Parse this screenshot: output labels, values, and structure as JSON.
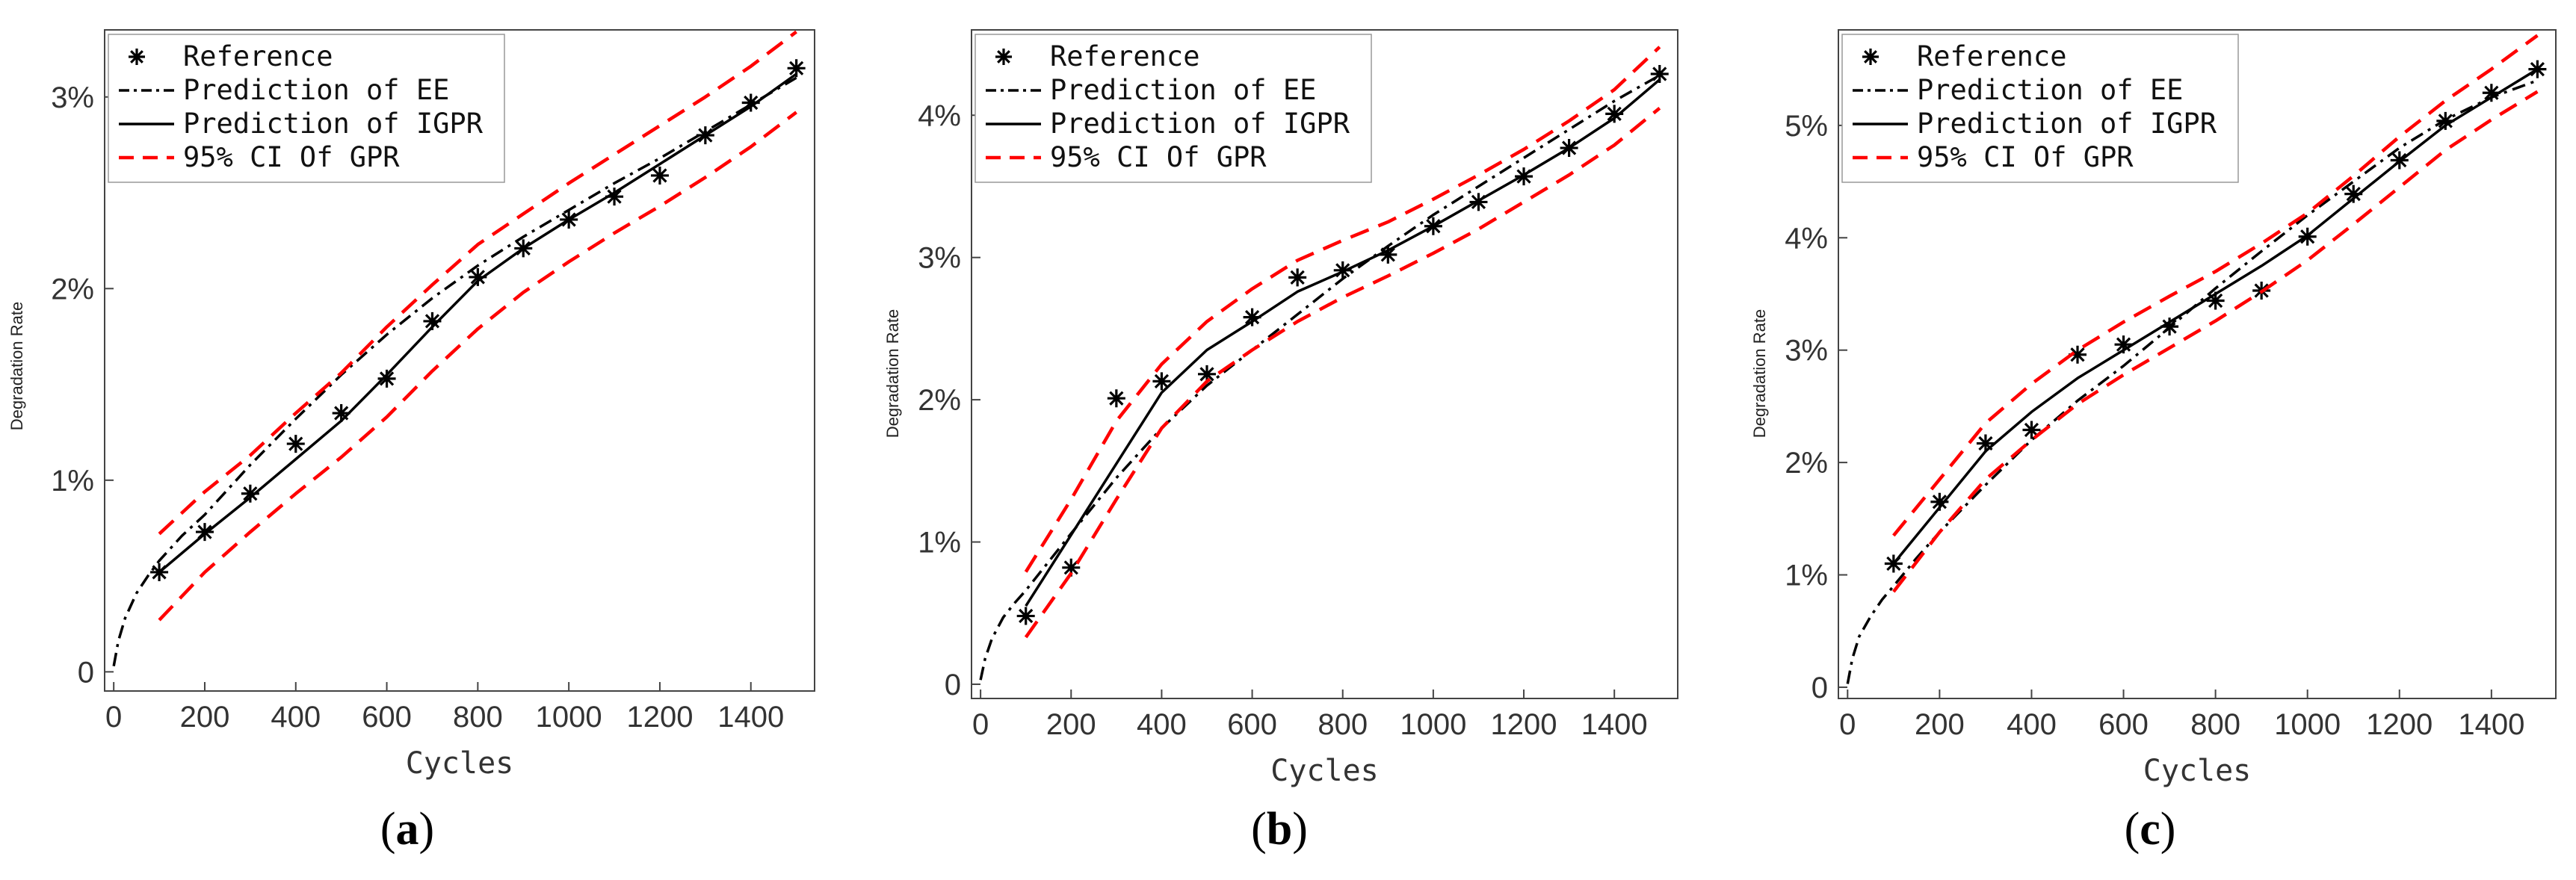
{
  "legend": {
    "reference": "Reference",
    "ee": "Prediction of EE",
    "igpr": "Prediction of IGPR",
    "ci": "95% CI Of GPR"
  },
  "colors": {
    "line": "#000000",
    "ci": "#ff0000",
    "axis": "#444444"
  },
  "chart_data": [
    {
      "type": "line",
      "panel": "a",
      "caption": "a",
      "xlabel": "Cycles",
      "ylabel": "Degradation Rate",
      "xlim": [
        -20,
        1540
      ],
      "ylim": [
        -0.1,
        3.35
      ],
      "xticks": [
        0,
        200,
        400,
        600,
        800,
        1000,
        1200,
        1400
      ],
      "yticks": [
        0,
        1,
        2,
        3
      ],
      "ytick_labels": [
        "0",
        "1%",
        "2%",
        "3%"
      ],
      "legend_position": "top-left",
      "series": [
        {
          "name": "Reference",
          "style": "markers",
          "x": [
            100,
            200,
            300,
            400,
            500,
            600,
            700,
            800,
            900,
            1000,
            1100,
            1200,
            1300,
            1400,
            1500
          ],
          "y": [
            0.52,
            0.73,
            0.93,
            1.19,
            1.35,
            1.53,
            1.83,
            2.06,
            2.21,
            2.36,
            2.48,
            2.59,
            2.8,
            2.97,
            3.15
          ]
        },
        {
          "name": "Prediction of EE",
          "style": "dashdot",
          "x": [
            0,
            10,
            25,
            50,
            75,
            100,
            150,
            200,
            300,
            400,
            500,
            600,
            700,
            800,
            900,
            1000,
            1100,
            1200,
            1300,
            1400,
            1500
          ],
          "y": [
            0.03,
            0.16,
            0.28,
            0.41,
            0.5,
            0.58,
            0.71,
            0.82,
            1.08,
            1.32,
            1.55,
            1.76,
            1.95,
            2.12,
            2.27,
            2.41,
            2.55,
            2.68,
            2.82,
            2.96,
            3.1
          ]
        },
        {
          "name": "Prediction of IGPR",
          "style": "solid",
          "x": [
            100,
            200,
            300,
            400,
            500,
            600,
            700,
            800,
            900,
            1000,
            1100,
            1200,
            1300,
            1400,
            1500
          ],
          "y": [
            0.52,
            0.72,
            0.91,
            1.11,
            1.31,
            1.55,
            1.8,
            2.04,
            2.21,
            2.36,
            2.5,
            2.65,
            2.8,
            2.95,
            3.12
          ]
        },
        {
          "name": "95% CI Of GPR upper",
          "style": "ci",
          "x": [
            100,
            200,
            300,
            400,
            500,
            600,
            700,
            800,
            900,
            1000,
            1100,
            1200,
            1300,
            1400,
            1500
          ],
          "y": [
            0.72,
            0.94,
            1.13,
            1.35,
            1.56,
            1.8,
            2.02,
            2.23,
            2.39,
            2.55,
            2.7,
            2.85,
            3.0,
            3.16,
            3.34
          ]
        },
        {
          "name": "95% CI Of GPR lower",
          "style": "ci",
          "x": [
            100,
            200,
            300,
            400,
            500,
            600,
            700,
            800,
            900,
            1000,
            1100,
            1200,
            1300,
            1400,
            1500
          ],
          "y": [
            0.27,
            0.52,
            0.73,
            0.93,
            1.12,
            1.33,
            1.57,
            1.79,
            1.98,
            2.14,
            2.29,
            2.43,
            2.58,
            2.74,
            2.92
          ]
        }
      ]
    },
    {
      "type": "line",
      "panel": "b",
      "caption": "b",
      "xlabel": "Cycles",
      "ylabel": "Degradation Rate",
      "xlim": [
        -20,
        1540
      ],
      "ylim": [
        -0.1,
        4.6
      ],
      "xticks": [
        0,
        200,
        400,
        600,
        800,
        1000,
        1200,
        1400
      ],
      "yticks": [
        0,
        1,
        2,
        3,
        4
      ],
      "ytick_labels": [
        "0",
        "1%",
        "2%",
        "3%",
        "4%"
      ],
      "legend_position": "top-left",
      "series": [
        {
          "name": "Reference",
          "style": "markers",
          "x": [
            100,
            200,
            300,
            400,
            500,
            600,
            700,
            800,
            900,
            1000,
            1100,
            1200,
            1300,
            1400,
            1500
          ],
          "y": [
            0.48,
            0.82,
            2.01,
            2.13,
            2.18,
            2.58,
            2.86,
            2.91,
            3.02,
            3.22,
            3.39,
            3.57,
            3.77,
            4.01,
            4.29
          ]
        },
        {
          "name": "Prediction of EE",
          "style": "dashdot",
          "x": [
            0,
            10,
            25,
            50,
            75,
            100,
            150,
            200,
            300,
            400,
            500,
            600,
            700,
            800,
            900,
            1000,
            1100,
            1200,
            1300,
            1400,
            1500
          ],
          "y": [
            0.03,
            0.18,
            0.32,
            0.47,
            0.57,
            0.66,
            0.86,
            1.06,
            1.45,
            1.8,
            2.1,
            2.35,
            2.6,
            2.85,
            3.08,
            3.3,
            3.5,
            3.7,
            3.9,
            4.1,
            4.28
          ]
        },
        {
          "name": "Prediction of IGPR",
          "style": "solid",
          "x": [
            100,
            200,
            300,
            400,
            500,
            600,
            700,
            800,
            900,
            1000,
            1100,
            1200,
            1300,
            1400,
            1500
          ],
          "y": [
            0.55,
            1.05,
            1.55,
            2.05,
            2.35,
            2.55,
            2.76,
            2.9,
            3.05,
            3.22,
            3.4,
            3.58,
            3.77,
            3.98,
            4.25
          ]
        },
        {
          "name": "95% CI Of GPR upper",
          "style": "ci",
          "x": [
            100,
            200,
            300,
            400,
            500,
            600,
            700,
            800,
            900,
            1000,
            1100,
            1200,
            1300,
            1400,
            1500
          ],
          "y": [
            0.79,
            1.3,
            1.85,
            2.25,
            2.55,
            2.78,
            2.98,
            3.12,
            3.25,
            3.41,
            3.58,
            3.76,
            3.96,
            4.18,
            4.48
          ]
        },
        {
          "name": "95% CI Of GPR lower",
          "style": "ci",
          "x": [
            100,
            200,
            300,
            400,
            500,
            600,
            700,
            800,
            900,
            1000,
            1100,
            1200,
            1300,
            1400,
            1500
          ],
          "y": [
            0.33,
            0.78,
            1.3,
            1.8,
            2.13,
            2.35,
            2.55,
            2.72,
            2.87,
            3.03,
            3.2,
            3.39,
            3.58,
            3.79,
            4.05
          ]
        }
      ]
    },
    {
      "type": "line",
      "panel": "c",
      "caption": "c",
      "xlabel": "Cycles",
      "ylabel": "Degradation Rate",
      "xlim": [
        -20,
        1540
      ],
      "ylim": [
        -0.1,
        5.85
      ],
      "xticks": [
        0,
        200,
        400,
        600,
        800,
        1000,
        1200,
        1400
      ],
      "yticks": [
        0,
        1,
        2,
        3,
        4,
        5
      ],
      "ytick_labels": [
        "0",
        "1%",
        "2%",
        "3%",
        "4%",
        "5%"
      ],
      "legend_position": "top-left",
      "series": [
        {
          "name": "Reference",
          "style": "markers",
          "x": [
            100,
            200,
            300,
            400,
            500,
            600,
            700,
            800,
            900,
            1000,
            1100,
            1200,
            1300,
            1400,
            1500
          ],
          "y": [
            1.1,
            1.65,
            2.17,
            2.29,
            2.96,
            3.05,
            3.21,
            3.44,
            3.53,
            4.01,
            4.39,
            4.69,
            5.04,
            5.29,
            5.5
          ]
        },
        {
          "name": "Prediction of EE",
          "style": "dashdot",
          "x": [
            0,
            10,
            25,
            50,
            75,
            100,
            150,
            200,
            300,
            400,
            500,
            600,
            700,
            800,
            900,
            1000,
            1100,
            1200,
            1300,
            1400,
            1500
          ],
          "y": [
            0.03,
            0.25,
            0.45,
            0.63,
            0.78,
            0.9,
            1.15,
            1.38,
            1.8,
            2.2,
            2.55,
            2.86,
            3.2,
            3.55,
            3.88,
            4.2,
            4.5,
            4.8,
            5.05,
            5.25,
            5.4
          ]
        },
        {
          "name": "Prediction of IGPR",
          "style": "solid",
          "x": [
            100,
            200,
            300,
            400,
            500,
            600,
            700,
            800,
            900,
            1000,
            1100,
            1200,
            1300,
            1400,
            1500
          ],
          "y": [
            1.1,
            1.6,
            2.1,
            2.45,
            2.75,
            3.0,
            3.25,
            3.5,
            3.75,
            4.02,
            4.35,
            4.68,
            5.0,
            5.25,
            5.5
          ]
        },
        {
          "name": "95% CI Of GPR upper",
          "style": "ci",
          "x": [
            100,
            200,
            300,
            400,
            500,
            600,
            700,
            800,
            900,
            1000,
            1100,
            1200,
            1300,
            1400,
            1500
          ],
          "y": [
            1.35,
            1.85,
            2.35,
            2.7,
            3.0,
            3.25,
            3.48,
            3.7,
            3.95,
            4.22,
            4.55,
            4.9,
            5.22,
            5.5,
            5.8
          ]
        },
        {
          "name": "95% CI Of GPR lower",
          "style": "ci",
          "x": [
            100,
            200,
            300,
            400,
            500,
            600,
            700,
            800,
            900,
            1000,
            1100,
            1200,
            1300,
            1400,
            1500
          ],
          "y": [
            0.85,
            1.38,
            1.85,
            2.2,
            2.52,
            2.78,
            3.02,
            3.26,
            3.52,
            3.8,
            4.12,
            4.45,
            4.78,
            5.05,
            5.3
          ]
        }
      ]
    }
  ]
}
